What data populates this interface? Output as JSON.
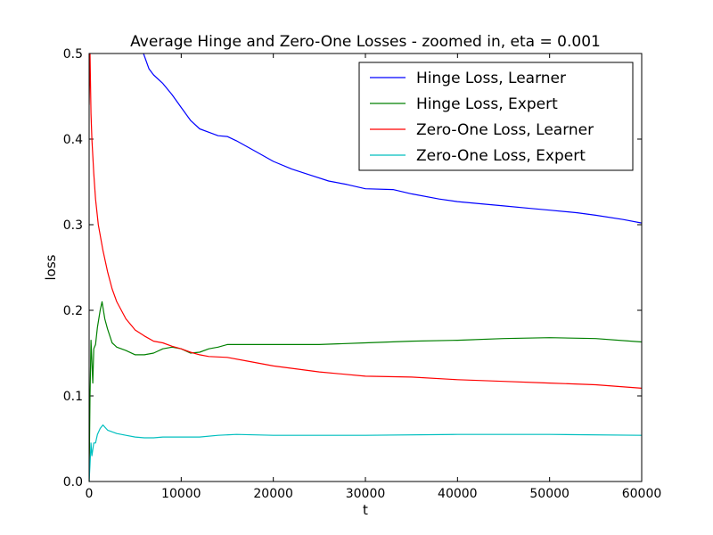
{
  "chart_data": {
    "type": "line",
    "title": "Average Hinge and Zero-One Losses - zoomed in, eta = 0.001",
    "xlabel": "t",
    "ylabel": "loss",
    "xlim": [
      0,
      60000
    ],
    "ylim": [
      0.0,
      0.5
    ],
    "xticks": [
      0,
      10000,
      20000,
      30000,
      40000,
      50000,
      60000
    ],
    "xtick_labels": [
      "0",
      "10000",
      "20000",
      "30000",
      "40000",
      "50000",
      "60000"
    ],
    "yticks": [
      0.0,
      0.1,
      0.2,
      0.3,
      0.4,
      0.5
    ],
    "ytick_labels": [
      "0.0",
      "0.1",
      "0.2",
      "0.3",
      "0.4",
      "0.5"
    ],
    "grid": false,
    "legend_position": "top-right",
    "series": [
      {
        "name": "Hinge Loss, Learner",
        "color": "#0000ff",
        "x": [
          5900,
          6500,
          7000,
          8000,
          9000,
          10000,
          11000,
          12000,
          13000,
          14000,
          15000,
          16000,
          18000,
          20000,
          22000,
          24000,
          26000,
          28000,
          30000,
          33000,
          35000,
          38000,
          40000,
          43000,
          45000,
          48000,
          50000,
          53000,
          55000,
          58000,
          60000
        ],
        "y": [
          0.5,
          0.482,
          0.475,
          0.465,
          0.452,
          0.437,
          0.422,
          0.412,
          0.408,
          0.404,
          0.403,
          0.398,
          0.386,
          0.374,
          0.365,
          0.358,
          0.351,
          0.347,
          0.342,
          0.341,
          0.336,
          0.33,
          0.327,
          0.324,
          0.322,
          0.319,
          0.317,
          0.314,
          0.311,
          0.306,
          0.302
        ]
      },
      {
        "name": "Hinge Loss, Expert",
        "color": "#008000",
        "x": [
          0,
          100,
          200,
          400,
          500,
          700,
          900,
          1200,
          1400,
          1700,
          2000,
          2500,
          3000,
          4000,
          5000,
          6000,
          7000,
          8000,
          9000,
          10000,
          11000,
          12000,
          13000,
          14000,
          15000,
          16000,
          18000,
          20000,
          25000,
          30000,
          35000,
          40000,
          45000,
          50000,
          55000,
          60000
        ],
        "y": [
          0.0,
          0.1,
          0.165,
          0.115,
          0.155,
          0.16,
          0.18,
          0.2,
          0.21,
          0.19,
          0.178,
          0.162,
          0.157,
          0.153,
          0.148,
          0.148,
          0.15,
          0.155,
          0.157,
          0.155,
          0.15,
          0.151,
          0.155,
          0.157,
          0.16,
          0.16,
          0.16,
          0.16,
          0.16,
          0.162,
          0.164,
          0.165,
          0.167,
          0.168,
          0.167,
          0.163
        ]
      },
      {
        "name": "Zero-One Loss, Learner",
        "color": "#ff0000",
        "x": [
          0,
          100,
          200,
          300,
          500,
          700,
          1000,
          1500,
          2000,
          2500,
          3000,
          4000,
          5000,
          6000,
          7000,
          8000,
          9000,
          10000,
          11000,
          12000,
          13000,
          15000,
          17000,
          20000,
          25000,
          30000,
          35000,
          40000,
          45000,
          50000,
          55000,
          60000
        ],
        "y": [
          0.44,
          0.5,
          0.43,
          0.4,
          0.36,
          0.33,
          0.3,
          0.27,
          0.245,
          0.225,
          0.21,
          0.19,
          0.177,
          0.17,
          0.164,
          0.162,
          0.158,
          0.155,
          0.151,
          0.148,
          0.146,
          0.145,
          0.141,
          0.135,
          0.128,
          0.123,
          0.122,
          0.119,
          0.117,
          0.115,
          0.113,
          0.109
        ]
      },
      {
        "name": "Zero-One Loss, Expert",
        "color": "#00bfbf",
        "x": [
          0,
          100,
          200,
          300,
          500,
          700,
          900,
          1200,
          1500,
          2000,
          3000,
          4000,
          5000,
          6000,
          7000,
          8000,
          10000,
          12000,
          14000,
          16000,
          20000,
          30000,
          40000,
          50000,
          60000
        ],
        "y": [
          0.0,
          0.02,
          0.045,
          0.03,
          0.045,
          0.045,
          0.055,
          0.062,
          0.066,
          0.06,
          0.056,
          0.054,
          0.052,
          0.051,
          0.051,
          0.052,
          0.052,
          0.052,
          0.054,
          0.055,
          0.054,
          0.054,
          0.055,
          0.055,
          0.054
        ]
      }
    ]
  }
}
